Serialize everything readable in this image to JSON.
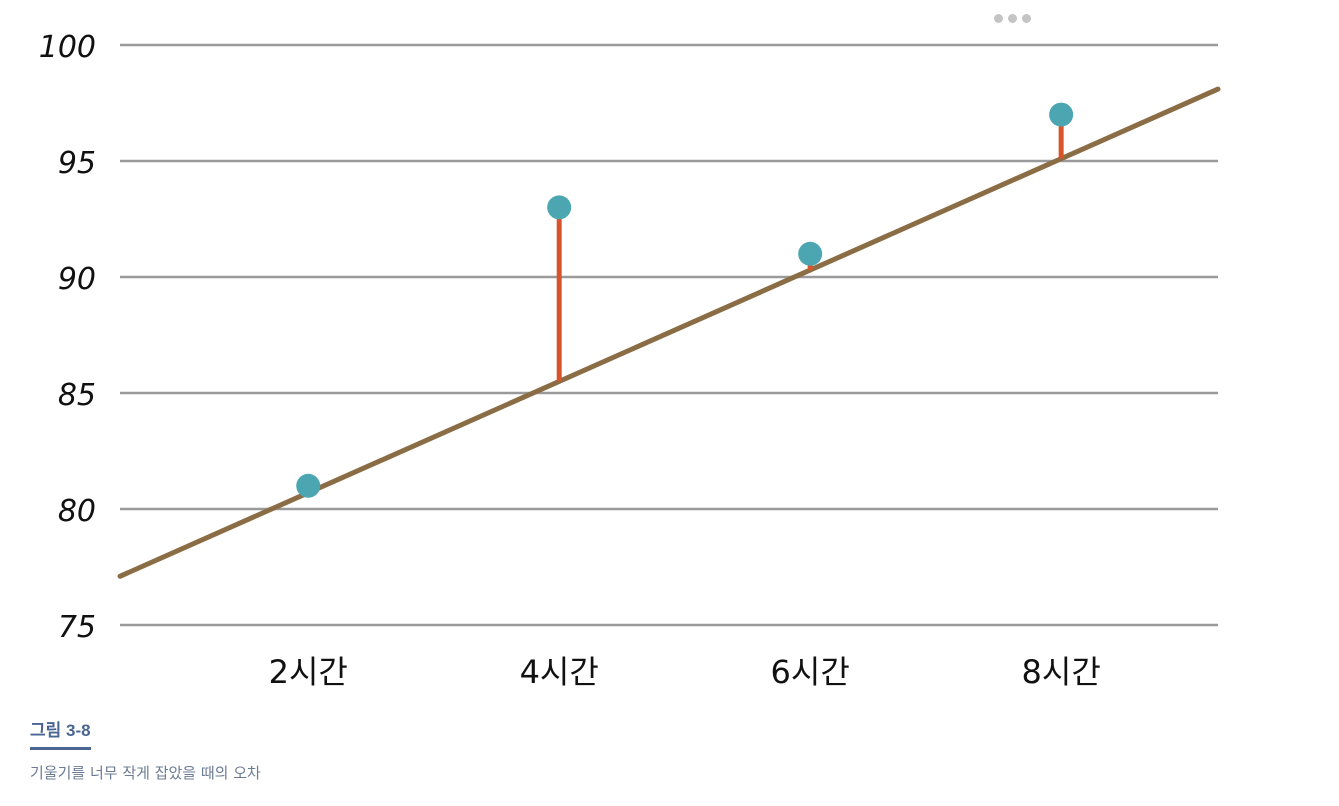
{
  "chart_data": {
    "type": "scatter",
    "categories": [
      "2시간",
      "4시간",
      "6시간",
      "8시간"
    ],
    "points": [
      {
        "x": 2,
        "y": 81
      },
      {
        "x": 4,
        "y": 93
      },
      {
        "x": 6,
        "y": 91
      },
      {
        "x": 8,
        "y": 97
      }
    ],
    "regression_line": {
      "slope": 2.4,
      "intercept": 75.9,
      "x_range": [
        0.5,
        9.25
      ]
    },
    "residual_lines": true,
    "yticks": [
      75,
      80,
      85,
      90,
      95,
      100
    ],
    "ylim": [
      75,
      100
    ],
    "xlim": [
      0.5,
      9.25
    ],
    "grid": "horizontal",
    "colors": {
      "points": "#4ba6b2",
      "residuals": "#d9532b",
      "line": "#8b6d45",
      "grid": "#9a9a9a"
    }
  },
  "caption": {
    "label": "그림 3-8",
    "text": "기울기를 너무 작게 잡았을 때의 오차"
  },
  "icons": {
    "more": "more-options-icon"
  }
}
